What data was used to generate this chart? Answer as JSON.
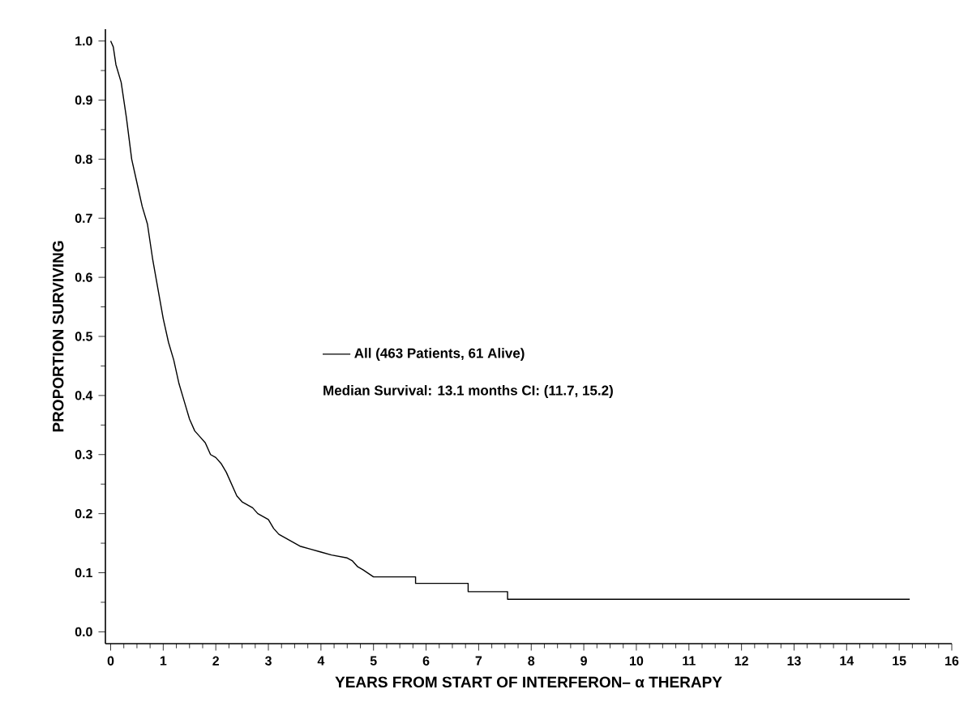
{
  "chart_data": {
    "type": "line",
    "xlabel": "YEARS FROM START OF INTERFERON– α THERAPY",
    "ylabel": "PROPORTION SURVIVING",
    "series": [
      {
        "name": "All (463 Patients, 61 Alive)",
        "color": "#000000",
        "x": [
          0,
          0.05,
          0.1,
          0.2,
          0.3,
          0.4,
          0.5,
          0.6,
          0.7,
          0.8,
          0.9,
          1.0,
          1.1,
          1.2,
          1.3,
          1.4,
          1.5,
          1.6,
          1.7,
          1.8,
          1.9,
          2.0,
          2.1,
          2.2,
          2.3,
          2.4,
          2.5,
          2.6,
          2.7,
          2.8,
          3.0,
          3.1,
          3.2,
          3.4,
          3.6,
          3.8,
          4.0,
          4.2,
          4.5,
          4.6,
          4.7,
          4.8,
          5.0,
          5.8,
          5.8,
          6.8,
          6.8,
          7.55,
          7.55,
          15.2
        ],
        "values": [
          1.0,
          0.99,
          0.96,
          0.93,
          0.87,
          0.8,
          0.76,
          0.72,
          0.69,
          0.63,
          0.58,
          0.53,
          0.49,
          0.46,
          0.42,
          0.39,
          0.36,
          0.34,
          0.33,
          0.32,
          0.3,
          0.295,
          0.285,
          0.27,
          0.25,
          0.23,
          0.22,
          0.215,
          0.21,
          0.2,
          0.19,
          0.175,
          0.165,
          0.155,
          0.145,
          0.14,
          0.135,
          0.13,
          0.125,
          0.12,
          0.11,
          0.105,
          0.093,
          0.093,
          0.082,
          0.082,
          0.068,
          0.068,
          0.055,
          0.055
        ]
      }
    ],
    "annotations": [
      "Median Survival: 13.1 months   CI: (11.7, 15.2)"
    ],
    "xlim": [
      -0.1,
      16
    ],
    "ylim": [
      -0.02,
      1.02
    ],
    "xticks": [
      0,
      1,
      2,
      3,
      4,
      5,
      6,
      7,
      8,
      9,
      10,
      11,
      12,
      13,
      14,
      15,
      16
    ],
    "yticks": [
      {
        "value": 0,
        "label": "0.0"
      },
      {
        "value": 0.1,
        "label": "0.1"
      },
      {
        "value": 0.2,
        "label": "0.2"
      },
      {
        "value": 0.3,
        "label": "0.3"
      },
      {
        "value": 0.4,
        "label": "0.4"
      },
      {
        "value": 0.5,
        "label": "0.5"
      },
      {
        "value": 0.6,
        "label": "0.6"
      },
      {
        "value": 0.7,
        "label": "0.7"
      },
      {
        "value": 0.8,
        "label": "0.8"
      },
      {
        "value": 0.9,
        "label": "0.9"
      },
      {
        "value": 1.0,
        "label": "1.0"
      }
    ],
    "legend": "center",
    "grid": false,
    "marker": "none",
    "line_style": "solid"
  }
}
